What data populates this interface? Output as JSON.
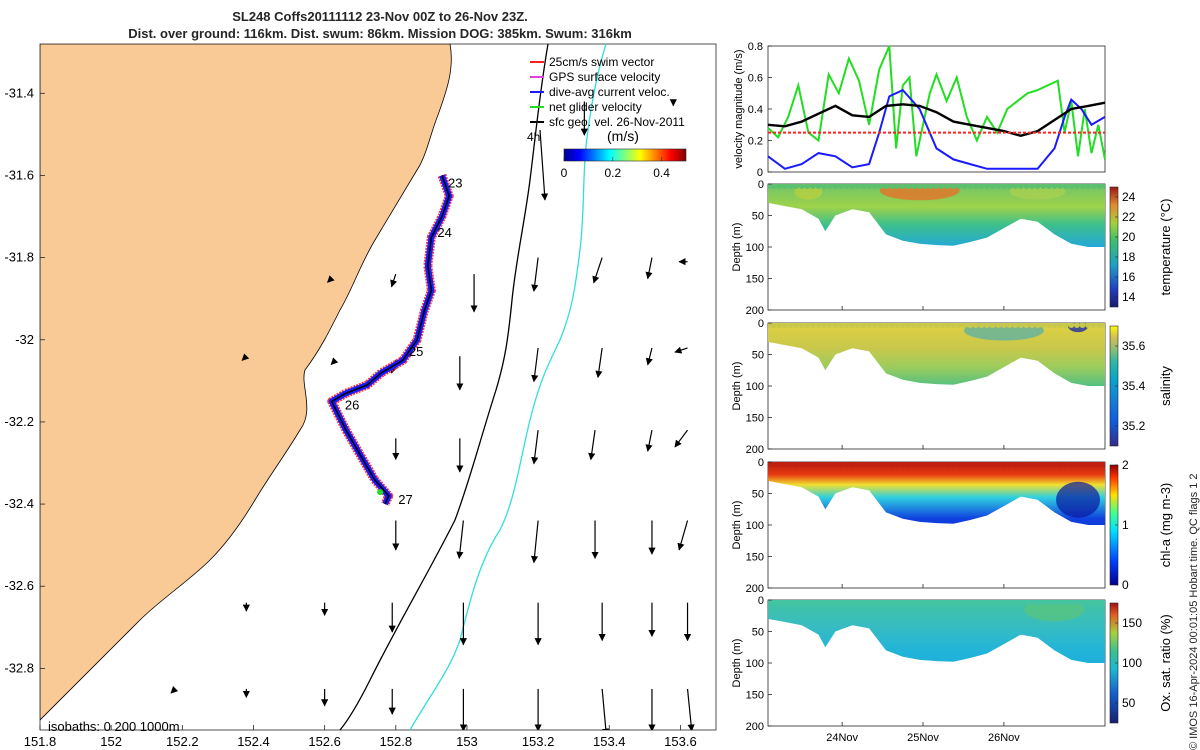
{
  "title": {
    "line1": "SL248 Coffs20111112 23-Nov 00Z to 26-Nov 23Z.",
    "line2": "Dist. over ground: 116km. Dist. swum: 86km. Mission DOG: 385km. Swum: 316km"
  },
  "side_note": "© IMOS 16-Apr-2024 00:01:05 Hobart time. QC flags 1  2",
  "colors": {
    "land": "#f9c996",
    "swim_vector": "#ff2020",
    "gps_velocity": "#e040e0",
    "dive_avg": "#1a1aff",
    "net_velocity": "#22dd22",
    "sfc_geo": "#000000",
    "isobath_200": "#000000",
    "isobath_1000": "#33dddd"
  },
  "chart_data": [
    {
      "type": "scatter",
      "title": "SL248 Coffs20111112 23-Nov 00Z to 26-Nov 23Z.",
      "xlim": [
        151.8,
        153.7
      ],
      "ylim": [
        -32.95,
        -31.28
      ],
      "x_ticks": [
        "151.8",
        "152",
        "152.2",
        "152.4",
        "152.6",
        "152.8",
        "153",
        "153.2",
        "153.4",
        "153.6"
      ],
      "x_tick_values": [
        151.8,
        152.0,
        152.2,
        152.4,
        152.6,
        152.8,
        153.0,
        153.2,
        153.4,
        153.6
      ],
      "y_ticks": [
        "-31.4",
        "-31.6",
        "-31.8",
        "-32",
        "-32.2",
        "-32.4",
        "-32.6",
        "-32.8"
      ],
      "y_tick_values": [
        -31.4,
        -31.6,
        -31.8,
        -32.0,
        -32.2,
        -32.4,
        -32.6,
        -32.8
      ],
      "legend": [
        {
          "label": "25cm/s swim vector",
          "color": "#ff2020"
        },
        {
          "label": "GPS surface velocity",
          "color": "#e040e0"
        },
        {
          "label": "dive-avg current veloc.",
          "color": "#1a1aff"
        },
        {
          "label": "net glider velocity",
          "color": "#22dd22"
        },
        {
          "label": "sfc geo. vel. 26-Nov-2011",
          "color": "#000000"
        }
      ],
      "scale_label": "4h",
      "colorbar": {
        "label": "(m/s)",
        "ticks": [
          "0",
          "0.2",
          "0.4"
        ],
        "tick_values": [
          0,
          0.2,
          0.4
        ],
        "range": [
          0,
          0.5
        ]
      },
      "isobaths_label": "isobaths: 0   200  1000m",
      "track": {
        "lon": [
          152.93,
          152.95,
          152.93,
          152.9,
          152.89,
          152.9,
          152.88,
          152.86,
          152.82,
          152.76,
          152.72,
          152.66,
          152.62,
          152.66,
          152.7,
          152.74,
          152.78,
          152.77
        ],
        "lat": [
          -31.6,
          -31.65,
          -31.7,
          -31.75,
          -31.82,
          -31.88,
          -31.93,
          -32.0,
          -32.05,
          -32.08,
          -32.11,
          -32.13,
          -32.15,
          -32.22,
          -32.28,
          -32.34,
          -32.38,
          -32.4
        ]
      },
      "day_labels": [
        {
          "label": "23",
          "lon": 152.93,
          "lat": -31.62
        },
        {
          "label": "24",
          "lon": 152.9,
          "lat": -31.74
        },
        {
          "label": "25",
          "lon": 152.82,
          "lat": -32.03
        },
        {
          "label": "26",
          "lon": 152.64,
          "lat": -32.16
        },
        {
          "label": "27",
          "lon": 152.79,
          "lat": -32.39
        }
      ],
      "geo_vectors": [
        {
          "lon": 153.33,
          "lat": -31.42,
          "u": 0.0,
          "v": -0.08
        },
        {
          "lon": 153.58,
          "lat": -31.42,
          "u": 0.0,
          "v": -0.01
        },
        {
          "lon": 153.2,
          "lat": -31.8,
          "u": -0.01,
          "v": -0.08
        },
        {
          "lon": 153.38,
          "lat": -31.8,
          "u": -0.02,
          "v": -0.06
        },
        {
          "lon": 153.52,
          "lat": -31.8,
          "u": -0.01,
          "v": -0.05
        },
        {
          "lon": 153.62,
          "lat": -31.81,
          "u": -0.02,
          "v": 0.0
        },
        {
          "lon": 153.02,
          "lat": -31.84,
          "u": 0.0,
          "v": -0.09
        },
        {
          "lon": 152.8,
          "lat": -31.84,
          "u": -0.01,
          "v": -0.03
        },
        {
          "lon": 152.62,
          "lat": -31.85,
          "u": -0.01,
          "v": -0.01
        },
        {
          "lon": 153.2,
          "lat": -32.02,
          "u": -0.01,
          "v": -0.08
        },
        {
          "lon": 153.38,
          "lat": -32.02,
          "u": -0.01,
          "v": -0.07
        },
        {
          "lon": 153.52,
          "lat": -32.02,
          "u": -0.01,
          "v": -0.04
        },
        {
          "lon": 153.62,
          "lat": -32.02,
          "u": -0.03,
          "v": -0.01
        },
        {
          "lon": 152.98,
          "lat": -32.04,
          "u": 0.0,
          "v": -0.08
        },
        {
          "lon": 152.8,
          "lat": -32.05,
          "u": -0.01,
          "v": -0.03
        },
        {
          "lon": 152.63,
          "lat": -32.05,
          "u": -0.01,
          "v": -0.01
        },
        {
          "lon": 152.38,
          "lat": -32.04,
          "u": -0.01,
          "v": -0.01
        },
        {
          "lon": 153.2,
          "lat": -32.22,
          "u": -0.01,
          "v": -0.08
        },
        {
          "lon": 153.36,
          "lat": -32.22,
          "u": -0.01,
          "v": -0.07
        },
        {
          "lon": 153.52,
          "lat": -32.22,
          "u": -0.01,
          "v": -0.05
        },
        {
          "lon": 153.62,
          "lat": -32.22,
          "u": -0.03,
          "v": -0.04
        },
        {
          "lon": 152.98,
          "lat": -32.24,
          "u": 0.0,
          "v": -0.08
        },
        {
          "lon": 152.8,
          "lat": -32.24,
          "u": 0.0,
          "v": -0.05
        },
        {
          "lon": 153.2,
          "lat": -32.44,
          "u": -0.01,
          "v": -0.1
        },
        {
          "lon": 153.36,
          "lat": -32.44,
          "u": 0.0,
          "v": -0.09
        },
        {
          "lon": 153.52,
          "lat": -32.44,
          "u": 0.0,
          "v": -0.08
        },
        {
          "lon": 153.62,
          "lat": -32.44,
          "u": -0.02,
          "v": -0.07
        },
        {
          "lon": 152.99,
          "lat": -32.44,
          "u": -0.01,
          "v": -0.09
        },
        {
          "lon": 152.8,
          "lat": -32.44,
          "u": 0.0,
          "v": -0.07
        },
        {
          "lon": 153.2,
          "lat": -32.64,
          "u": 0.0,
          "v": -0.1
        },
        {
          "lon": 153.38,
          "lat": -32.64,
          "u": 0.0,
          "v": -0.09
        },
        {
          "lon": 153.52,
          "lat": -32.64,
          "u": 0.0,
          "v": -0.08
        },
        {
          "lon": 153.62,
          "lat": -32.64,
          "u": 0.0,
          "v": -0.09
        },
        {
          "lon": 152.99,
          "lat": -32.64,
          "u": 0.0,
          "v": -0.1
        },
        {
          "lon": 152.79,
          "lat": -32.64,
          "u": 0.0,
          "v": -0.07
        },
        {
          "lon": 152.6,
          "lat": -32.64,
          "u": 0.0,
          "v": -0.03
        },
        {
          "lon": 152.38,
          "lat": -32.64,
          "u": 0.0,
          "v": -0.02
        },
        {
          "lon": 153.2,
          "lat": -32.85,
          "u": 0.0,
          "v": -0.1
        },
        {
          "lon": 153.38,
          "lat": -32.85,
          "u": 0.01,
          "v": -0.11
        },
        {
          "lon": 153.52,
          "lat": -32.85,
          "u": 0.0,
          "v": -0.1
        },
        {
          "lon": 153.62,
          "lat": -32.85,
          "u": 0.01,
          "v": -0.1
        },
        {
          "lon": 152.99,
          "lat": -32.85,
          "u": 0.0,
          "v": -0.1
        },
        {
          "lon": 152.79,
          "lat": -32.85,
          "u": 0.0,
          "v": -0.06
        },
        {
          "lon": 152.6,
          "lat": -32.85,
          "u": 0.0,
          "v": -0.04
        },
        {
          "lon": 152.38,
          "lat": -32.85,
          "u": 0.0,
          "v": -0.02
        },
        {
          "lon": 152.18,
          "lat": -32.85,
          "u": -0.01,
          "v": -0.01
        }
      ]
    },
    {
      "type": "line",
      "ylabel": "velocity magnitude (m/s)",
      "xlim": [
        0,
        100
      ],
      "ylim": [
        0,
        0.8
      ],
      "y_ticks": [
        "0",
        "0.2",
        "0.4",
        "0.6",
        "0.8"
      ],
      "y_tick_values": [
        0,
        0.2,
        0.4,
        0.6,
        0.8
      ],
      "series": [
        {
          "name": "net glider velocity",
          "color": "#22dd22",
          "x": [
            0,
            3,
            6,
            9,
            12,
            15,
            18,
            21,
            24,
            27,
            30,
            33,
            36,
            38,
            40,
            42,
            44,
            46,
            48,
            50,
            53,
            56,
            59,
            62,
            65,
            68,
            71,
            74,
            77,
            80,
            83,
            86,
            88,
            90,
            92,
            94,
            96,
            98,
            100
          ],
          "y": [
            0.28,
            0.22,
            0.35,
            0.55,
            0.25,
            0.2,
            0.62,
            0.5,
            0.72,
            0.58,
            0.3,
            0.65,
            0.8,
            0.15,
            0.55,
            0.6,
            0.1,
            0.3,
            0.5,
            0.62,
            0.45,
            0.6,
            0.35,
            0.2,
            0.35,
            0.25,
            0.4,
            0.45,
            0.5,
            0.52,
            0.55,
            0.58,
            0.25,
            0.45,
            0.1,
            0.4,
            0.12,
            0.3,
            0.08
          ]
        },
        {
          "name": "dive-avg current veloc.",
          "color": "#1a1aff",
          "x": [
            0,
            5,
            10,
            15,
            20,
            25,
            30,
            33,
            36,
            40,
            45,
            50,
            55,
            60,
            65,
            70,
            75,
            80,
            85,
            88,
            90,
            93,
            96,
            100
          ],
          "y": [
            0.1,
            0.02,
            0.05,
            0.12,
            0.1,
            0.03,
            0.05,
            0.25,
            0.48,
            0.52,
            0.4,
            0.15,
            0.08,
            0.05,
            0.02,
            0.02,
            0.02,
            0.02,
            0.15,
            0.35,
            0.46,
            0.4,
            0.3,
            0.35
          ]
        },
        {
          "name": "sfc geo. vel. 26-Nov-2011",
          "color": "#000000",
          "x": [
            0,
            5,
            10,
            15,
            20,
            25,
            30,
            35,
            40,
            45,
            50,
            55,
            60,
            65,
            70,
            75,
            80,
            85,
            90,
            95,
            100
          ],
          "y": [
            0.3,
            0.29,
            0.32,
            0.37,
            0.42,
            0.36,
            0.35,
            0.42,
            0.43,
            0.42,
            0.38,
            0.32,
            0.3,
            0.28,
            0.26,
            0.23,
            0.26,
            0.33,
            0.4,
            0.42,
            0.44
          ]
        },
        {
          "name": "25cm/s swim vector",
          "color": "#ff2020",
          "x": [
            0,
            100
          ],
          "y": [
            0.25,
            0.25
          ]
        }
      ]
    },
    {
      "type": "heatmap",
      "name": "temperature",
      "ylabel": "Depth (m)",
      "colorbar_label": "temperature (°C)",
      "ylim": [
        0,
        200
      ],
      "y_ticks": [
        "0",
        "50",
        "100",
        "150",
        "200"
      ],
      "y_tick_values": [
        0,
        50,
        100,
        150,
        200
      ],
      "cbar_range": [
        13,
        25
      ],
      "cbar_ticks": [
        "14",
        "16",
        "18",
        "20",
        "22",
        "24"
      ],
      "cbar_tick_values": [
        14,
        16,
        18,
        20,
        22,
        24
      ],
      "profile_x": [
        0,
        5,
        10,
        15,
        17,
        20,
        25,
        30,
        35,
        40,
        45,
        50,
        55,
        60,
        65,
        70,
        75,
        80,
        85,
        90,
        95,
        100
      ],
      "bottom_depth": [
        30,
        35,
        40,
        55,
        75,
        50,
        40,
        45,
        80,
        90,
        95,
        97,
        98,
        92,
        85,
        70,
        55,
        60,
        80,
        95,
        100,
        100
      ],
      "surface_value": 19.5,
      "deep_value": 16.0,
      "hot_band": [
        30,
        55,
        23.5
      ],
      "thermocline": 40
    },
    {
      "type": "heatmap",
      "name": "salinity",
      "ylabel": "Depth (m)",
      "colorbar_label": "salinity",
      "ylim": [
        0,
        200
      ],
      "y_ticks": [
        "0",
        "50",
        "100",
        "150",
        "200"
      ],
      "y_tick_values": [
        0,
        50,
        100,
        150,
        200
      ],
      "cbar_range": [
        35.1,
        35.7
      ],
      "cbar_ticks": [
        "35.2",
        "35.4",
        "35.6"
      ],
      "cbar_tick_values": [
        35.2,
        35.4,
        35.6
      ],
      "profile_x": [
        0,
        5,
        10,
        15,
        17,
        20,
        25,
        30,
        35,
        40,
        45,
        50,
        55,
        60,
        65,
        70,
        75,
        80,
        85,
        90,
        95,
        100
      ],
      "bottom_depth": [
        30,
        35,
        40,
        55,
        75,
        50,
        40,
        45,
        80,
        90,
        95,
        97,
        98,
        92,
        85,
        70,
        55,
        60,
        80,
        95,
        100,
        100
      ],
      "surface_value": 35.52,
      "deep_value": 35.38
    },
    {
      "type": "heatmap",
      "name": "chl-a",
      "ylabel": "Depth (m)",
      "colorbar_label": "chl-a (mg m-3)",
      "ylim": [
        0,
        200
      ],
      "y_ticks": [
        "0",
        "50",
        "100",
        "150",
        "200"
      ],
      "y_tick_values": [
        0,
        50,
        100,
        150,
        200
      ],
      "cbar_range": [
        0,
        2
      ],
      "cbar_ticks": [
        "0",
        "1",
        "2"
      ],
      "cbar_tick_values": [
        0,
        1,
        2
      ],
      "profile_x": [
        0,
        5,
        10,
        15,
        17,
        20,
        25,
        30,
        35,
        40,
        45,
        50,
        55,
        60,
        65,
        70,
        75,
        80,
        85,
        90,
        95,
        100
      ],
      "bottom_depth": [
        30,
        35,
        40,
        55,
        75,
        50,
        40,
        45,
        80,
        90,
        95,
        97,
        98,
        92,
        85,
        70,
        55,
        60,
        80,
        95,
        100,
        100
      ],
      "surface_value": 2.0,
      "deep_value": 0.1
    },
    {
      "type": "heatmap",
      "name": "oxygen",
      "ylabel": "Depth (m)",
      "colorbar_label": "Ox. sat. ratio (%)",
      "ylim": [
        0,
        200
      ],
      "y_ticks": [
        "0",
        "50",
        "100",
        "150",
        "200"
      ],
      "y_tick_values": [
        0,
        50,
        100,
        150,
        200
      ],
      "cbar_range": [
        25,
        175
      ],
      "cbar_ticks": [
        "50",
        "100",
        "150"
      ],
      "cbar_tick_values": [
        50,
        100,
        150
      ],
      "x_ticks": [
        "24Nov",
        "25Nov",
        "26Nov"
      ],
      "x_tick_values": [
        22,
        46,
        70
      ],
      "profile_x": [
        0,
        5,
        10,
        15,
        17,
        20,
        25,
        30,
        35,
        40,
        45,
        50,
        55,
        60,
        65,
        70,
        75,
        80,
        85,
        90,
        95,
        100
      ],
      "bottom_depth": [
        30,
        35,
        40,
        55,
        75,
        50,
        40,
        45,
        80,
        90,
        95,
        97,
        98,
        92,
        85,
        70,
        55,
        60,
        80,
        95,
        100,
        100
      ],
      "surface_value": 112,
      "deep_value": 100
    }
  ]
}
